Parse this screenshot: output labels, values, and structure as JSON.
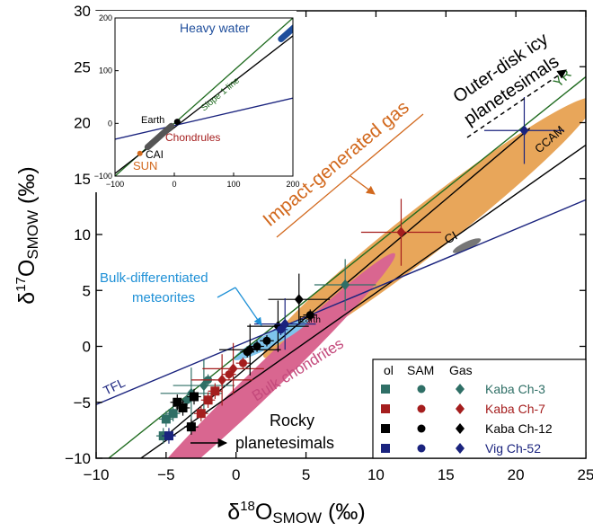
{
  "chart_data": [
    {
      "type": "scatter",
      "xlabel": {
        "main": "δ",
        "sup": "18",
        "sub": "O",
        "subscript": "SMOW",
        "unit": " (‰)"
      },
      "ylabel": {
        "main": "δ",
        "sup": "17",
        "sub": "O",
        "subscript": "SMOW",
        "unit": " (‰)"
      },
      "xlim": [
        -10,
        25
      ],
      "ylim": [
        -10,
        30
      ],
      "xticks": [
        -10,
        -5,
        0,
        5,
        10,
        15,
        20,
        25
      ],
      "yticks": [
        -10,
        -5,
        0,
        5,
        10,
        15,
        20,
        25,
        30
      ],
      "xtick_labels": [
        "−10",
        "−5",
        "0",
        "5",
        "10",
        "15",
        "20",
        "25"
      ],
      "ytick_labels": [
        "−10",
        "−5",
        "0",
        "5",
        "10",
        "15",
        "20",
        "25",
        "30"
      ],
      "lines": [
        {
          "name": "YR",
          "color": "#1f6b1f",
          "x": [
            -10,
            25
          ],
          "y": [
            -10.9,
            24.1
          ]
        },
        {
          "name": "CCAM",
          "color": "#000000",
          "x": [
            -6.8,
            25
          ],
          "y": [
            -10,
            18.0
          ]
        },
        {
          "name": "TFL",
          "color": "#1a237e",
          "x": [
            -10,
            25
          ],
          "y": [
            -5.2,
            13.1
          ]
        },
        {
          "name": "",
          "color": "#000000",
          "x": [
            -5.0,
            21.0
          ],
          "y": [
            -8.0,
            19.5
          ]
        }
      ],
      "ellipses": [
        {
          "name": "Impact-generated gas",
          "color": "#e8a65a",
          "cx": 13.8,
          "cy": 10.6,
          "rx": 15.0,
          "ry": 2.1,
          "angle_deg": 38
        },
        {
          "name": "Bulk chondrites",
          "color": "#d96690",
          "cx": 2.0,
          "cy": -3.0,
          "rx": 13.0,
          "ry": 1.3,
          "angle_deg": 44
        },
        {
          "name": "Bulk-differentiated meteorites",
          "color": "#7fc4ec",
          "cx": 2.5,
          "cy": 0.6,
          "rx": 3.0,
          "ry": 0.6,
          "angle_deg": 28
        },
        {
          "name": "CI",
          "color": "#777777",
          "cx": 16.5,
          "cy": 9.0,
          "rx": 1.1,
          "ry": 0.35,
          "angle_deg": 25
        }
      ],
      "series": [
        {
          "name": "Kaba Ch-3",
          "color": "#2f6f66",
          "ol": [
            [
              -5.2,
              -8.0
            ],
            [
              -4.5,
              -6.0
            ],
            [
              -5.0,
              -6.5
            ]
          ],
          "SAM": [
            [
              -3.5,
              -4.8
            ],
            [
              -2.0,
              -3.0
            ]
          ],
          "Gas": [
            [
              7.8,
              5.5
            ],
            [
              -2.3,
              -3.5
            ],
            [
              -3.2,
              -4.2
            ]
          ]
        },
        {
          "name": "Kaba Ch-7",
          "color": "#a51e1e",
          "ol": [
            [
              -2.5,
              -6.0
            ],
            [
              -1.5,
              -4.0
            ],
            [
              -2.0,
              -4.8
            ]
          ],
          "SAM": [
            [
              -0.5,
              -2.5
            ],
            [
              0.5,
              -1.5
            ]
          ],
          "Gas": [
            [
              11.8,
              10.2
            ],
            [
              -0.2,
              -2.0
            ],
            [
              -1.0,
              -3.0
            ]
          ]
        },
        {
          "name": "Kaba Ch-12",
          "color": "#000000",
          "ol": [
            [
              -3.2,
              -7.2
            ],
            [
              -3.8,
              -5.5
            ],
            [
              -3.0,
              -4.5
            ],
            [
              -4.2,
              -5.0
            ]
          ],
          "SAM": [
            [
              5.3,
              2.8
            ],
            [
              2.2,
              0.5
            ],
            [
              1.5,
              0.0
            ],
            [
              0.8,
              -0.5
            ]
          ],
          "Gas": [
            [
              4.5,
              4.2
            ],
            [
              3.0,
              1.8
            ],
            [
              1.0,
              -0.3
            ]
          ]
        },
        {
          "name": "Vig Ch-52",
          "color": "#1a237e",
          "ol": [
            [
              -4.8,
              -8.0
            ]
          ],
          "SAM": [
            [
              3.2,
              1.5
            ]
          ],
          "Gas": [
            [
              20.6,
              19.3
            ],
            [
              3.5,
              2.0
            ]
          ]
        }
      ],
      "annotations": {
        "yr": "YR",
        "ccam": "CCAM",
        "tfl": "TFL",
        "ci": "CI",
        "earth": "Earth",
        "impact_gas": "Impact-generated gas",
        "bulk_chondrites": "Bulk chondrites",
        "bulk_diff_1": "Bulk-differentiated",
        "bulk_diff_2": "meteorites",
        "outer_1": "Outer-disk icy",
        "outer_2": "planetesimals",
        "rocky_1": "Rocky",
        "rocky_2": "planetesimals"
      },
      "legend": {
        "position": "bottom-right",
        "headers": [
          "ol",
          "SAM",
          "Gas"
        ],
        "rows": [
          "Kaba Ch-3",
          "Kaba Ch-7",
          "Kaba Ch-12",
          "Vig Ch-52"
        ]
      }
    },
    {
      "type": "line",
      "inset": true,
      "xlim": [
        -100,
        200
      ],
      "ylim": [
        -100,
        200
      ],
      "xticks": [
        -100,
        0,
        100,
        200
      ],
      "yticks": [
        -100,
        0,
        100,
        200
      ],
      "xtick_labels": [
        "−100",
        "0",
        "100",
        "200"
      ],
      "ytick_labels": [
        "−100",
        "0",
        "100",
        "200"
      ],
      "lines": [
        {
          "name": "Slope 1 line",
          "color": "#1f6b1f",
          "x": [
            -100,
            200
          ],
          "y": [
            -100,
            200
          ]
        },
        {
          "name": "",
          "color": "#000000",
          "x": [
            -100,
            200
          ],
          "y": [
            -95,
            166
          ]
        },
        {
          "name": "",
          "color": "#1a237e",
          "x": [
            -100,
            200
          ],
          "y": [
            -30,
            48
          ]
        }
      ],
      "segments": [
        {
          "name": "Heavy water",
          "color": "#1f4e9c",
          "x": [
            180,
            205
          ],
          "y": [
            160,
            185
          ]
        },
        {
          "name": "Chondrules / CAI",
          "color": "#555555",
          "x": [
            -45,
            -5
          ],
          "y": [
            -45,
            -5
          ]
        }
      ],
      "points": [
        {
          "name": "Earth",
          "x": 5,
          "y": 3
        }
      ],
      "annotations": {
        "heavy_water": "Heavy water",
        "slope": "Slope 1 line",
        "earth": "Earth",
        "chondrules": "Chondrules",
        "cai": "CAI",
        "sun": "SUN"
      },
      "colors": {
        "sun": "#d2691e",
        "chondrules": "#a51e1e",
        "heavy_water": "#1f4e9c"
      }
    }
  ]
}
